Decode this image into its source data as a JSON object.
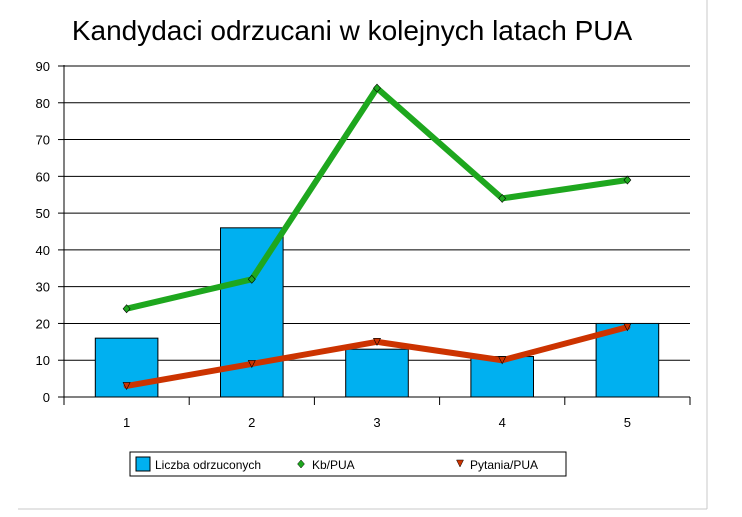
{
  "chart_data": {
    "type": "bar",
    "title": "Kandydaci odrzucani w kolejnych latach PUA",
    "xlabel": "",
    "ylabel": "",
    "categories": [
      "1",
      "2",
      "3",
      "4",
      "5"
    ],
    "ylim": [
      0,
      90
    ],
    "yticks": [
      0,
      10,
      20,
      30,
      40,
      50,
      60,
      70,
      80,
      90
    ],
    "grid": true,
    "legend_position": "bottom",
    "series": [
      {
        "name": "Liczba odrzuconych",
        "kind": "bar",
        "color": "#00B0F0",
        "values": [
          16,
          46,
          13,
          11,
          20
        ]
      },
      {
        "name": "Kb/PUA",
        "kind": "line",
        "marker": "diamond",
        "color": "#1EA71E",
        "values": [
          24,
          32,
          84,
          54,
          59
        ]
      },
      {
        "name": "Pytania/PUA",
        "kind": "line",
        "marker": "triangle-down",
        "color": "#CC3300",
        "values": [
          3,
          9,
          15,
          10,
          19
        ]
      }
    ]
  }
}
